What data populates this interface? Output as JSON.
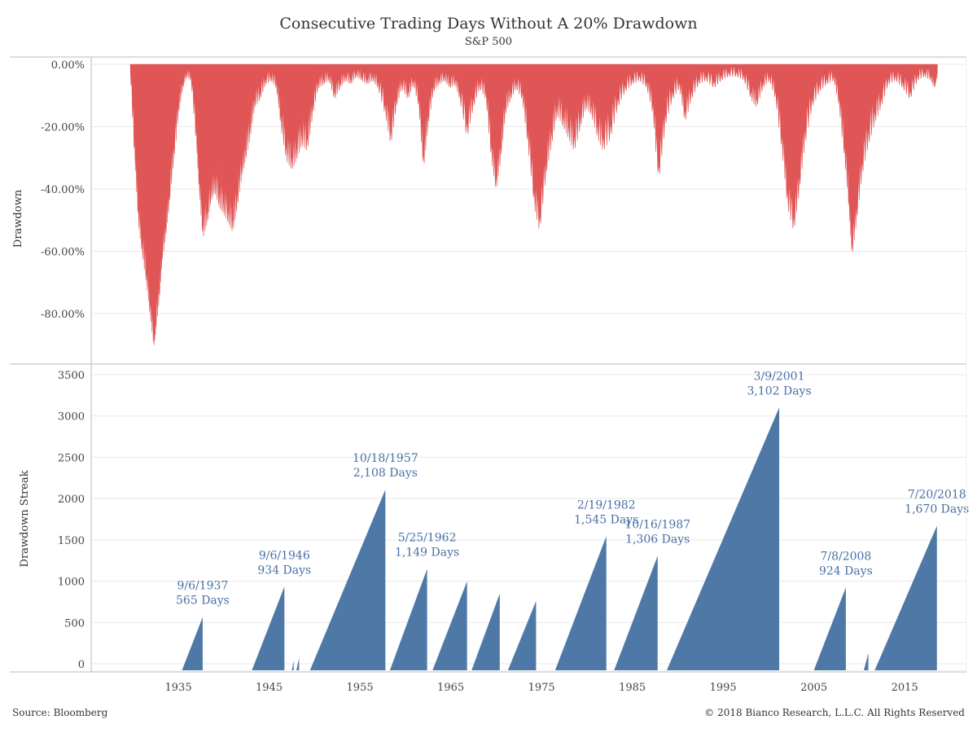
{
  "title": "Consecutive Trading Days Without A 20% Drawdown",
  "subtitle": "S&P 500",
  "footer": {
    "source": "Source: Bloomberg",
    "copyright": "© 2018 Bianco Research, L.L.C. All Rights Reserved"
  },
  "colors": {
    "drawdown": "#e05555",
    "streak": "#4e79a7",
    "annotation": "#4a6fa5",
    "grid": "#e8e8e8",
    "axis": "#bbbbbb"
  },
  "chart_data": [
    {
      "type": "area",
      "ylabel": "Drawdown",
      "ylim": [
        -95,
        0
      ],
      "y_ticks": [
        "0.00%",
        "-20.00%",
        "-40.00%",
        "-60.00%",
        "-80.00%"
      ],
      "y_tick_values": [
        0,
        -20,
        -40,
        -60,
        -80
      ],
      "grid": true,
      "series": [
        {
          "x": [
            1929.7,
            1930.2,
            1930.6,
            1931.0,
            1931.5,
            1931.9,
            1932.3,
            1932.5,
            1932.9,
            1933.2,
            1933.6,
            1934.0,
            1934.5,
            1935.0,
            1935.5,
            1935.9,
            1936.4,
            1937.0,
            1937.3,
            1937.7,
            1938.2,
            1938.6,
            1939.0,
            1939.5,
            1940.0,
            1940.5,
            1941.0,
            1941.5,
            1942.0,
            1942.4,
            1942.9,
            1943.4,
            1944.0,
            1944.6,
            1945.2,
            1945.8,
            1946.3,
            1946.9,
            1947.5,
            1948.0,
            1948.6,
            1949.2,
            1949.8,
            1950.4,
            1951.0,
            1951.6,
            1952.2,
            1952.8,
            1953.4,
            1954.0,
            1954.6,
            1955.2,
            1955.8,
            1956.4,
            1957.0,
            1957.8,
            1958.4,
            1959.0,
            1959.6,
            1960.3,
            1960.9,
            1961.5,
            1962.0,
            1962.5,
            1963.1,
            1963.7,
            1964.3,
            1964.9,
            1965.5,
            1966.0,
            1966.8,
            1967.5,
            1968.2,
            1968.9,
            1969.5,
            1970.0,
            1970.5,
            1971.0,
            1971.6,
            1972.2,
            1972.9,
            1973.5,
            1974.2,
            1974.8,
            1975.5,
            1976.1,
            1976.7,
            1977.4,
            1978.0,
            1978.6,
            1979.3,
            1979.9,
            1980.5,
            1981.2,
            1981.8,
            1982.6,
            1983.4,
            1984.2,
            1985.0,
            1985.8,
            1986.6,
            1987.3,
            1987.9,
            1988.6,
            1989.4,
            1990.2,
            1990.8,
            1991.5,
            1992.3,
            1993.1,
            1994.0,
            1994.8,
            1995.6,
            1996.5,
            1997.3,
            1998.1,
            1998.7,
            1999.4,
            2000.1,
            2000.8,
            2001.5,
            2002.1,
            2002.8,
            2003.4,
            2004.0,
            2004.8,
            2005.6,
            2006.4,
            2007.2,
            2007.8,
            2008.4,
            2008.9,
            2009.2,
            2009.7,
            2010.3,
            2011.0,
            2011.7,
            2012.4,
            2013.2,
            2014.0,
            2014.8,
            2015.6,
            2016.4,
            2017.2,
            2017.9,
            2018.3,
            2018.6
          ],
          "y": [
            0,
            -25,
            -45,
            -55,
            -65,
            -75,
            -85,
            -80,
            -70,
            -58,
            -50,
            -40,
            -25,
            -12,
            -5,
            -2,
            -3,
            -20,
            -35,
            -50,
            -45,
            -38,
            -35,
            -40,
            -42,
            -45,
            -48,
            -40,
            -30,
            -25,
            -18,
            -10,
            -8,
            -4,
            -3,
            -5,
            -15,
            -25,
            -28,
            -25,
            -20,
            -22,
            -12,
            -5,
            -4,
            -3,
            -8,
            -5,
            -3,
            -4,
            -2,
            -3,
            -4,
            -3,
            -5,
            -12,
            -20,
            -10,
            -5,
            -8,
            -4,
            -10,
            -28,
            -15,
            -6,
            -4,
            -3,
            -5,
            -4,
            -8,
            -18,
            -10,
            -5,
            -8,
            -25,
            -35,
            -25,
            -12,
            -8,
            -5,
            -8,
            -20,
            -40,
            -48,
            -30,
            -20,
            -12,
            -15,
            -18,
            -22,
            -15,
            -10,
            -12,
            -18,
            -22,
            -18,
            -10,
            -6,
            -4,
            -3,
            -5,
            -12,
            -32,
            -15,
            -8,
            -5,
            -14,
            -8,
            -4,
            -3,
            -5,
            -3,
            -2,
            -2,
            -3,
            -8,
            -10,
            -5,
            -3,
            -8,
            -22,
            -40,
            -48,
            -35,
            -20,
            -10,
            -6,
            -4,
            -3,
            -10,
            -25,
            -42,
            -56,
            -45,
            -30,
            -20,
            -14,
            -10,
            -4,
            -3,
            -5,
            -8,
            -3,
            -2,
            -3,
            -5,
            -2
          ]
        }
      ]
    },
    {
      "type": "area",
      "ylabel": "Drawdown Streak",
      "ylim": [
        -100,
        3600
      ],
      "y_ticks": [
        "0",
        "500",
        "1000",
        "1500",
        "2000",
        "2500",
        "3000",
        "3500"
      ],
      "y_tick_values": [
        0,
        500,
        1000,
        1500,
        2000,
        2500,
        3000,
        3500
      ],
      "x_ticks": [
        "1935",
        "1945",
        "1955",
        "1965",
        "1975",
        "1985",
        "1995",
        "2005",
        "2015"
      ],
      "x_tick_values": [
        1935,
        1945,
        1955,
        1965,
        1975,
        1985,
        1995,
        2005,
        2015
      ],
      "xlim": [
        1925.4,
        2021.8
      ],
      "grid": true,
      "streaks": [
        {
          "start": 1935.4,
          "end": 1937.68,
          "peak": 565
        },
        {
          "start": 1943.1,
          "end": 1946.68,
          "peak": 934
        },
        {
          "start": 1947.5,
          "end": 1947.7,
          "peak": 40
        },
        {
          "start": 1948.0,
          "end": 1948.3,
          "peak": 70
        },
        {
          "start": 1949.5,
          "end": 1957.8,
          "peak": 2108
        },
        {
          "start": 1958.3,
          "end": 1962.4,
          "peak": 1149
        },
        {
          "start": 1963.0,
          "end": 1966.8,
          "peak": 1000
        },
        {
          "start": 1967.3,
          "end": 1970.4,
          "peak": 850
        },
        {
          "start": 1971.3,
          "end": 1974.4,
          "peak": 760
        },
        {
          "start": 1976.5,
          "end": 1982.14,
          "peak": 1545
        },
        {
          "start": 1983.0,
          "end": 1987.79,
          "peak": 1306
        },
        {
          "start": 1988.8,
          "end": 2001.18,
          "peak": 3102
        },
        {
          "start": 2005.0,
          "end": 2008.52,
          "peak": 924
        },
        {
          "start": 2010.5,
          "end": 2011.0,
          "peak": 130
        },
        {
          "start": 2011.7,
          "end": 2018.55,
          "peak": 1670
        }
      ],
      "annotations": [
        {
          "date": "9/6/1937",
          "days": "565 Days",
          "x": 1937.68,
          "y": 565
        },
        {
          "date": "9/6/1946",
          "days": "934 Days",
          "x": 1946.68,
          "y": 934
        },
        {
          "date": "10/18/1957",
          "days": "2,108 Days",
          "x": 1957.8,
          "y": 2108
        },
        {
          "date": "5/25/1962",
          "days": "1,149 Days",
          "x": 1962.4,
          "y": 1149
        },
        {
          "date": "2/19/1982",
          "days": "1,545 Days",
          "x": 1982.14,
          "y": 1545
        },
        {
          "date": "10/16/1987",
          "days": "1,306 Days",
          "x": 1987.79,
          "y": 1306
        },
        {
          "date": "3/9/2001",
          "days": "3,102 Days",
          "x": 2001.18,
          "y": 3102
        },
        {
          "date": "7/8/2008",
          "days": "924 Days",
          "x": 2008.52,
          "y": 924
        },
        {
          "date": "7/20/2018",
          "days": "1,670 Days",
          "x": 2018.55,
          "y": 1670
        }
      ]
    }
  ]
}
